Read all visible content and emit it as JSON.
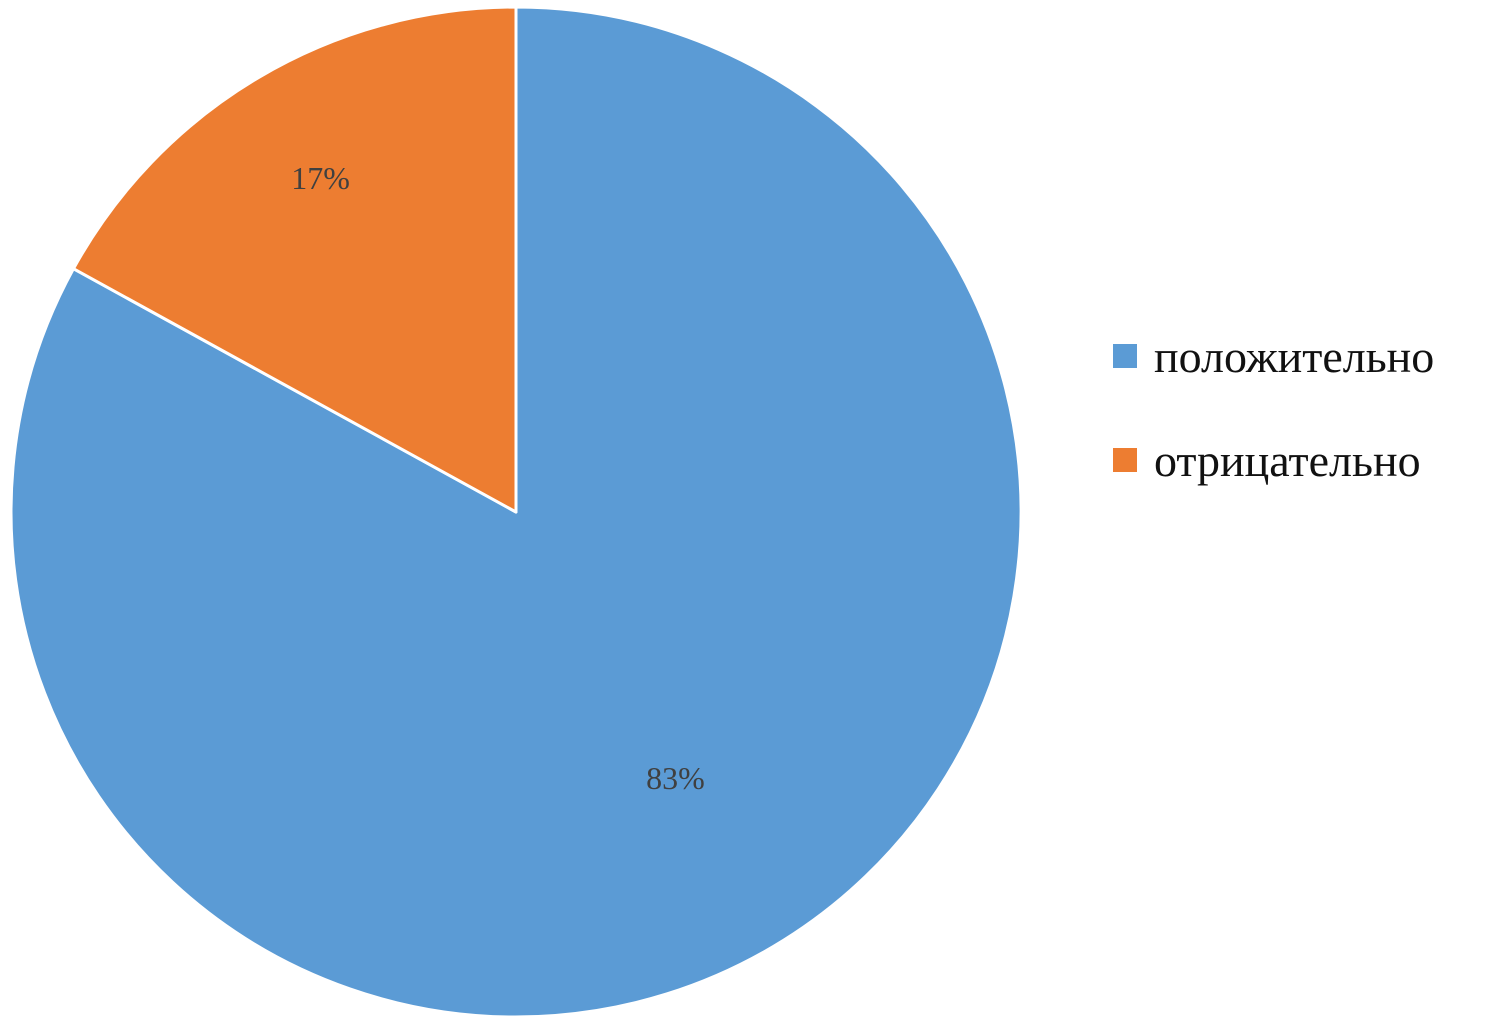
{
  "chart_data": {
    "type": "pie",
    "title": "",
    "slices": [
      {
        "name": "положительно",
        "value": 83,
        "label": "83%",
        "color": "#5B9BD5"
      },
      {
        "name": "отрицательно",
        "value": 17,
        "label": "17%",
        "color": "#ED7D31"
      }
    ],
    "legend_position": "right",
    "start_angle": "12 o'clock",
    "direction": "clockwise"
  }
}
